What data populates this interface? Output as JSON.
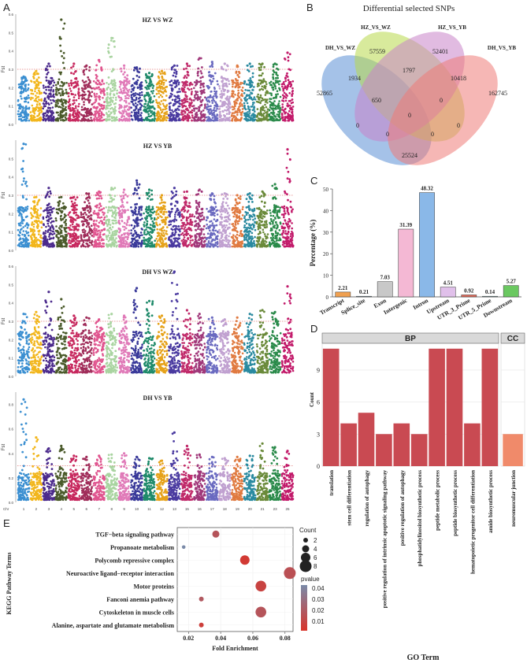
{
  "figure": {
    "panel_letters": [
      "A",
      "B",
      "C",
      "D",
      "E"
    ]
  },
  "chart_data": [
    {
      "panel": "A",
      "type": "scatter",
      "subtype": "manhattan",
      "ylabel": "Fst",
      "chromosome_axis_prefix": "Chr",
      "chromosome_labels": [
        "1",
        "2",
        "3",
        "4",
        "5",
        "6",
        "7",
        "8",
        "9",
        "10",
        "11",
        "12",
        "13",
        "15",
        "16",
        "17",
        "18",
        "19",
        "20",
        "21",
        "23",
        "25"
      ],
      "chromosome_colors": [
        "#3b8fd1",
        "#f2b61c",
        "#4b2a8c",
        "#4a5a2a",
        "#c7285e",
        "#a02d5a",
        "#e0558f",
        "#a9d4a0",
        "#e07ab8",
        "#3a3a9a",
        "#1f8a6a",
        "#e6a21a",
        "#4a3aa0",
        "#c02a6a",
        "#a0387a",
        "#6a6ac0",
        "#c0a0d0",
        "#e07a40",
        "#2a8aa0",
        "#6a8a3a",
        "#2a8a4a",
        "#c21a6a"
      ],
      "threshold": 0.3,
      "threshold_color": "#d23a3a",
      "plots": [
        {
          "title": "HZ VS WZ",
          "ylim": [
            0,
            0.6
          ],
          "yticks": [
            "0.0",
            "0.1",
            "0.2",
            "0.3",
            "0.4",
            "0.5",
            "0.6"
          ],
          "peaks": [
            0.26,
            0.29,
            0.33,
            0.57,
            0.33,
            0.32,
            0.35,
            0.47,
            0.32,
            0.31,
            0.28,
            0.29,
            0.32,
            0.33,
            0.36,
            0.34,
            0.33,
            0.32,
            0.33,
            0.33,
            0.33,
            0.39
          ]
        },
        {
          "title": "HZ VS YB",
          "ylim": [
            0,
            0.6
          ],
          "yticks": [
            "0.0",
            "0.1",
            "0.2",
            "0.3",
            "0.4",
            "0.5"
          ],
          "peaks": [
            0.58,
            0.29,
            0.34,
            0.29,
            0.29,
            0.31,
            0.32,
            0.34,
            0.33,
            0.38,
            0.33,
            0.3,
            0.34,
            0.32,
            0.33,
            0.31,
            0.31,
            0.3,
            0.31,
            0.32,
            0.36,
            0.55
          ]
        },
        {
          "title": "DH VS WZ",
          "ylim": [
            0,
            0.6
          ],
          "yticks": [
            "0.0",
            "0.1",
            "0.2",
            "0.3",
            "0.4",
            "0.5",
            "0.6"
          ],
          "peaks": [
            0.34,
            0.35,
            0.46,
            0.42,
            0.33,
            0.32,
            0.31,
            0.34,
            0.33,
            0.48,
            0.41,
            0.33,
            0.57,
            0.36,
            0.34,
            0.32,
            0.31,
            0.32,
            0.34,
            0.36,
            0.35,
            0.49
          ]
        },
        {
          "title": "DH VS YB",
          "ylim": [
            0,
            0.9
          ],
          "yticks": [
            "0.0",
            "0.2",
            "0.4",
            "0.6",
            "0.8"
          ],
          "peaks": [
            0.84,
            0.53,
            0.44,
            0.46,
            0.38,
            0.37,
            0.38,
            0.39,
            0.4,
            0.37,
            0.36,
            0.34,
            0.57,
            0.46,
            0.39,
            0.37,
            0.36,
            0.37,
            0.38,
            0.48,
            0.45,
            0.42
          ]
        }
      ]
    },
    {
      "panel": "B",
      "type": "venn",
      "title": "Differential selected SNPs",
      "sets": [
        {
          "name": "DH_VS_WZ",
          "color": "#5b8fd6"
        },
        {
          "name": "HZ_VS_WZ",
          "color": "#b8d84a"
        },
        {
          "name": "HZ_VS_YB",
          "color": "#c883c9"
        },
        {
          "name": "DH_VS_YB",
          "color": "#ef7b78"
        }
      ],
      "values": [
        "52865",
        "57559",
        "52401",
        "162745",
        "1934",
        "1797",
        "10418",
        "650",
        "0",
        "0",
        "0",
        "0",
        "0",
        "0",
        "25524"
      ]
    },
    {
      "panel": "C",
      "type": "bar",
      "ylabel": "Percentage (%)",
      "ylim": [
        0,
        50
      ],
      "yticks": [
        "0",
        "10",
        "20",
        "30",
        "40",
        "50"
      ],
      "categories": [
        "Transcript",
        "Splice_site",
        "Exon",
        "Intergenic",
        "Intron",
        "Upstream",
        "UTR_3_Prime",
        "UTR_5_Prime",
        "Downstream"
      ],
      "values": [
        2.21,
        0.21,
        7.03,
        31.39,
        48.32,
        4.51,
        0.92,
        0.14,
        5.27
      ],
      "value_labels": [
        "2.21",
        "0.21",
        "7.03",
        "31.39",
        "48.32",
        "4.51",
        "0.92",
        "0.14",
        "5.27"
      ],
      "colors": [
        "#f0a050",
        "#a8c8d8",
        "#c8c8c8",
        "#f4b8d4",
        "#8ab8e8",
        "#e0c0ea",
        "#e06a5a",
        "#a8d8d8",
        "#6ac860"
      ]
    },
    {
      "panel": "D",
      "type": "bar",
      "facets": [
        "BP",
        "CC"
      ],
      "ylabel": "Count",
      "xlabel": "GO Term",
      "ylim": [
        0,
        11.5
      ],
      "yticks": [
        "0",
        "3",
        "6",
        "9"
      ],
      "categories": [
        "translation",
        "stem cell differentiation",
        "regulation of autophagy",
        "positive regulation of intrinsic apoptotic signaling pathway",
        "positive regulation of autophagy",
        "phosphatidylinositol biosynthetic process",
        "peptide metabolic process",
        "peptide biosynthetic process",
        "hematopoietic progenitor cell differentiation",
        "amide biosynthetic process",
        "neuromuscular junction"
      ],
      "facet_of": [
        "BP",
        "BP",
        "BP",
        "BP",
        "BP",
        "BP",
        "BP",
        "BP",
        "BP",
        "BP",
        "CC"
      ],
      "values": [
        11,
        4,
        5,
        3,
        4,
        3,
        11,
        11,
        4,
        11,
        3
      ],
      "colors": {
        "BP": "#c94a52",
        "CC": "#f08a6a"
      }
    },
    {
      "panel": "E",
      "type": "scatter",
      "subtype": "dotplot",
      "ylabel": "KEGG Pathway Terms",
      "xlabel": "Fold Enrichment",
      "xlim": [
        0.013,
        0.085
      ],
      "xticks": [
        0.02,
        0.04,
        0.06,
        0.08
      ],
      "xtick_labels": [
        "0.02",
        "0.04",
        "0.06",
        "0.08"
      ],
      "categories": [
        "TGF−beta signaling pathway",
        "Propanoate metabolism",
        "Polycomb repressive complex",
        "Neuroactive ligand−receptor interaction",
        "Motor proteins",
        "Fanconi anemia pathway",
        "Cytoskeleton in muscle cells",
        "Alanine, aspartate and glutamate metabolism"
      ],
      "x": [
        0.037,
        0.017,
        0.055,
        0.083,
        0.065,
        0.028,
        0.065,
        0.028
      ],
      "count": [
        4,
        1,
        6,
        8,
        7,
        2,
        7,
        2
      ],
      "pvalue": [
        0.02,
        0.045,
        0.008,
        0.018,
        0.012,
        0.022,
        0.02,
        0.01
      ],
      "size_legend_title": "Count",
      "size_legend": [
        2,
        4,
        6,
        8
      ],
      "color_legend_title": "pvalue",
      "color_legend_labels": [
        "0.04",
        "0.03",
        "0.02",
        "0.01"
      ],
      "color_low": "#d9342b",
      "color_high": "#7a8aa8"
    }
  ]
}
